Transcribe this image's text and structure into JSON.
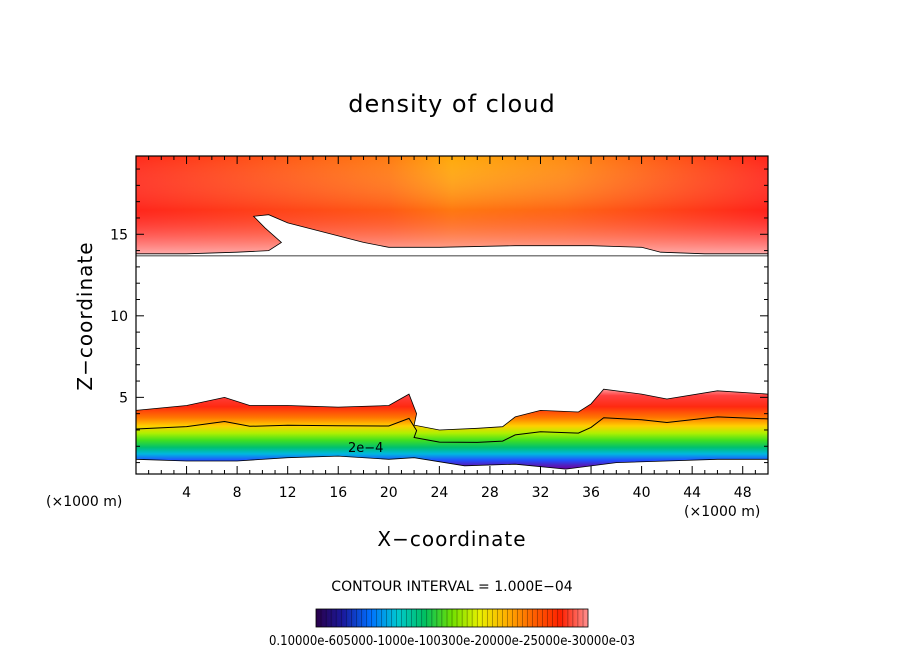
{
  "chart_data": {
    "type": "heatmap",
    "title": "density of cloud",
    "xlabel": "X−coordinate",
    "ylabel": "Z−coordinate",
    "x_unit": "(×1000 m)",
    "z_unit": "(×1000 m)",
    "xlim": [
      0,
      50
    ],
    "ylim": [
      0.3,
      19.8
    ],
    "x_ticks": [
      4,
      8,
      12,
      16,
      20,
      24,
      28,
      32,
      36,
      40,
      44,
      48
    ],
    "y_ticks": [
      5,
      10,
      15
    ],
    "contour_interval_text": "CONTOUR INTERVAL = 1.000E−04",
    "contour_label": "2e−4",
    "colorbar_labels_text": "0.10000e-605000-1000e-100300e-20000e-25000e-30000e-03",
    "colorbar_stops": [
      "#2a004a",
      "#1a1a9e",
      "#0070ff",
      "#00c8d0",
      "#00c060",
      "#70e000",
      "#e8f000",
      "#ffb000",
      "#ff6000",
      "#ff2000",
      "#ff9090"
    ],
    "upper_layer": {
      "top_km": 19.8,
      "bottom_edge": [
        [
          0,
          13.8
        ],
        [
          4,
          13.8
        ],
        [
          8,
          13.9
        ],
        [
          10.5,
          14.0
        ],
        [
          11.5,
          14.5
        ],
        [
          10.2,
          15.4
        ],
        [
          9.3,
          16.1
        ],
        [
          10.5,
          16.2
        ],
        [
          12,
          15.7
        ],
        [
          15,
          15.1
        ],
        [
          18,
          14.5
        ],
        [
          20,
          14.2
        ],
        [
          24,
          14.2
        ],
        [
          30,
          14.3
        ],
        [
          36,
          14.3
        ],
        [
          40,
          14.2
        ],
        [
          41.5,
          13.9
        ],
        [
          45,
          13.8
        ],
        [
          50,
          13.8
        ]
      ]
    },
    "lower_layer": {
      "top_edge": [
        [
          0,
          4.2
        ],
        [
          4,
          4.5
        ],
        [
          7,
          5.0
        ],
        [
          9,
          4.5
        ],
        [
          12,
          4.5
        ],
        [
          16,
          4.4
        ],
        [
          20,
          4.5
        ],
        [
          21.6,
          5.2
        ],
        [
          22.2,
          4.0
        ],
        [
          22,
          3.3
        ],
        [
          24,
          3.0
        ],
        [
          27,
          3.1
        ],
        [
          29,
          3.2
        ],
        [
          30,
          3.8
        ],
        [
          32,
          4.2
        ],
        [
          35,
          4.1
        ],
        [
          36,
          4.6
        ],
        [
          37,
          5.5
        ],
        [
          40,
          5.2
        ],
        [
          42,
          4.9
        ],
        [
          46,
          5.4
        ],
        [
          50,
          5.2
        ]
      ],
      "bottom_edge": [
        [
          0,
          1.2
        ],
        [
          4,
          1.1
        ],
        [
          8,
          1.1
        ],
        [
          12,
          1.3
        ],
        [
          16,
          1.4
        ],
        [
          20,
          1.2
        ],
        [
          22,
          1.3
        ],
        [
          26,
          0.8
        ],
        [
          30,
          0.9
        ],
        [
          34,
          0.6
        ],
        [
          38,
          1.0
        ],
        [
          42,
          1.1
        ],
        [
          46,
          1.2
        ],
        [
          50,
          1.2
        ]
      ]
    }
  }
}
